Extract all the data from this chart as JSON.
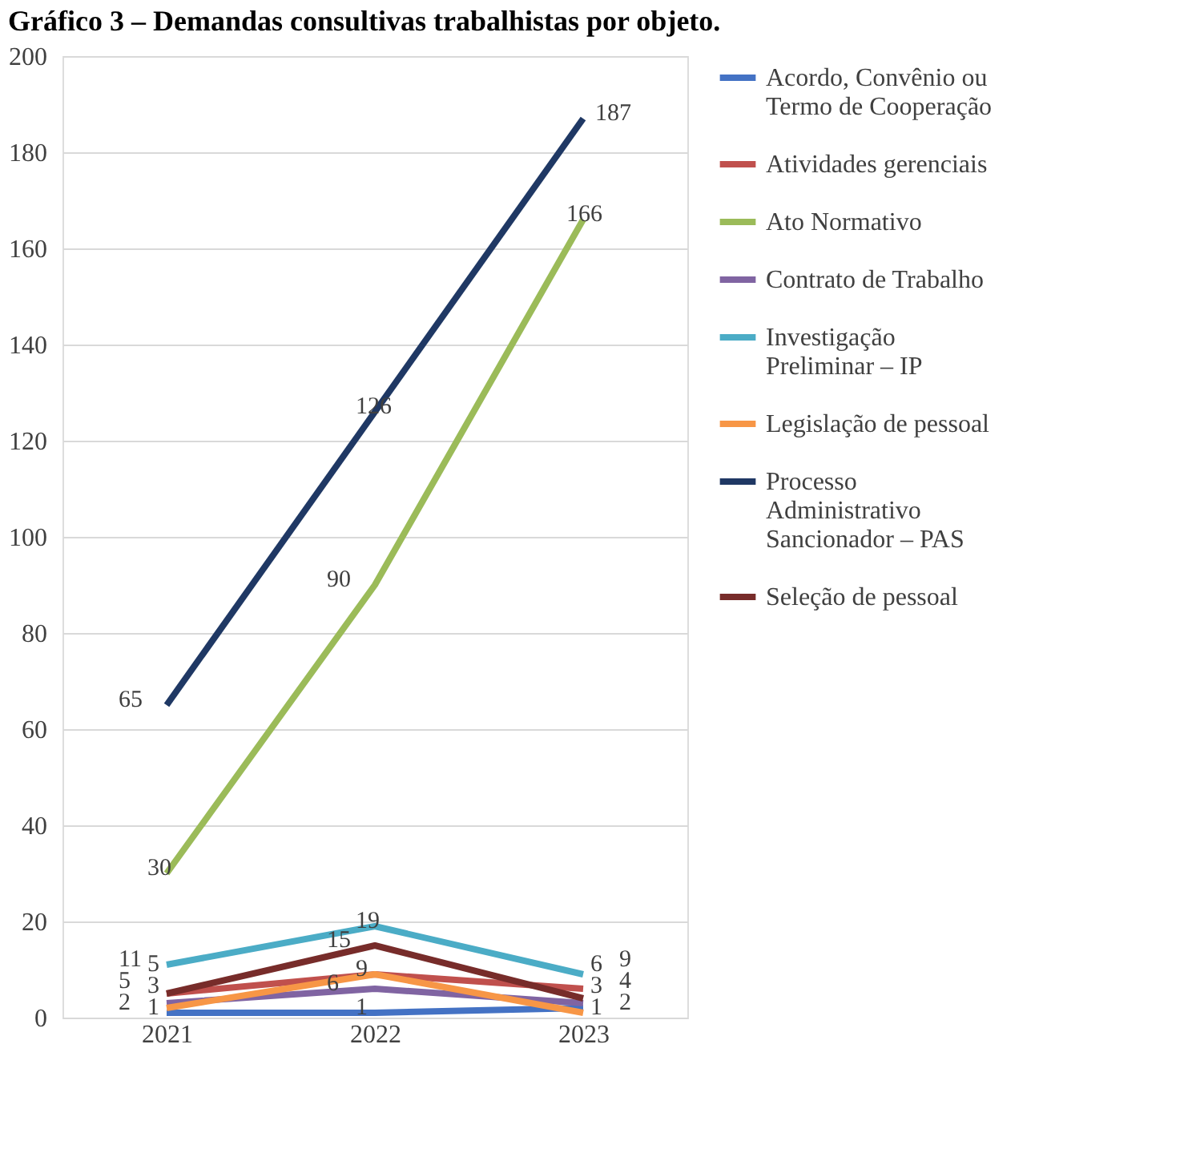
{
  "chart_data": {
    "type": "line",
    "title": "Gráfico 3 – Demandas consultivas trabalhistas por objeto.",
    "categories": [
      "2021",
      "2022",
      "2023"
    ],
    "series": [
      {
        "name": "Acordo, Convênio ou Termo de Cooperação",
        "color": "#4472c4",
        "values": [
          1,
          1,
          2
        ]
      },
      {
        "name": "Atividades gerenciais",
        "color": "#c0504d",
        "values": [
          5,
          9,
          6
        ]
      },
      {
        "name": "Ato Normativo",
        "color": "#9bbb59",
        "values": [
          30,
          90,
          166
        ]
      },
      {
        "name": "Contrato de Trabalho",
        "color": "#8064a2",
        "values": [
          3,
          6,
          3
        ]
      },
      {
        "name": "Investigação Preliminar – IP",
        "color": "#4bacc6",
        "values": [
          11,
          19,
          9
        ]
      },
      {
        "name": "Legislação de pessoal",
        "color": "#f79646",
        "values": [
          2,
          9,
          1
        ],
        "value_labels": [
          "2",
          null,
          "1"
        ]
      },
      {
        "name": "Processo Administrativo Sancionador – PAS",
        "color": "#1f3864",
        "values": [
          65,
          126,
          187
        ]
      },
      {
        "name": "Seleção de pessoal",
        "color": "#772c2a",
        "values": [
          5,
          15,
          4
        ]
      }
    ],
    "ylim": [
      0,
      200
    ],
    "yticks": [
      0,
      20,
      40,
      60,
      80,
      100,
      120,
      140,
      160,
      180,
      200
    ],
    "grid": "y",
    "legend": "right",
    "marker": "none",
    "line_style": "solid",
    "data_labels": true
  }
}
